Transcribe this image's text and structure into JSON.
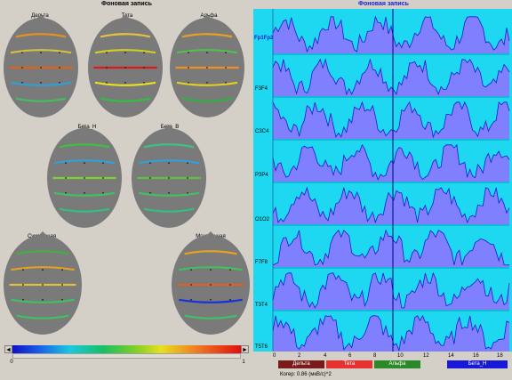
{
  "left_panel": {
    "title": "Фоновая запись",
    "maps": [
      {
        "label": "Дельта"
      },
      {
        "label": "Тета"
      },
      {
        "label": "Альфа"
      },
      {
        "label": "Бета_Н"
      },
      {
        "label": "Бета_В"
      },
      {
        "label": "Суммарная"
      },
      {
        "label": "Мгновенная"
      }
    ],
    "colorbar": {
      "min_label": "0",
      "max_label": "1"
    }
  },
  "right_panel": {
    "title": "Фоновая запись",
    "channels": [
      "Fp1Fp2",
      "F3F4",
      "C3C4",
      "P3P4",
      "O1O2",
      "F7F8",
      "T3T4",
      "T5T6"
    ],
    "x_ticks": [
      "0",
      "2",
      "4",
      "6",
      "8",
      "10",
      "12",
      "14",
      "16",
      "18"
    ],
    "bands": [
      {
        "label": "Дельта",
        "color": "#7a1a1a"
      },
      {
        "label": "Тета",
        "color": "#e83030"
      },
      {
        "label": "Альфа",
        "color": "#2a8a2a"
      },
      {
        "label": "Бета_Н",
        "color": "#1818d8"
      }
    ],
    "footer": "Когер: 0.86 (мкВ/с)^2",
    "colors": {
      "background": "#1dd8f0",
      "fill": "#8080ff",
      "line": "#1a1ad0",
      "cursor": "#00007a"
    }
  }
}
